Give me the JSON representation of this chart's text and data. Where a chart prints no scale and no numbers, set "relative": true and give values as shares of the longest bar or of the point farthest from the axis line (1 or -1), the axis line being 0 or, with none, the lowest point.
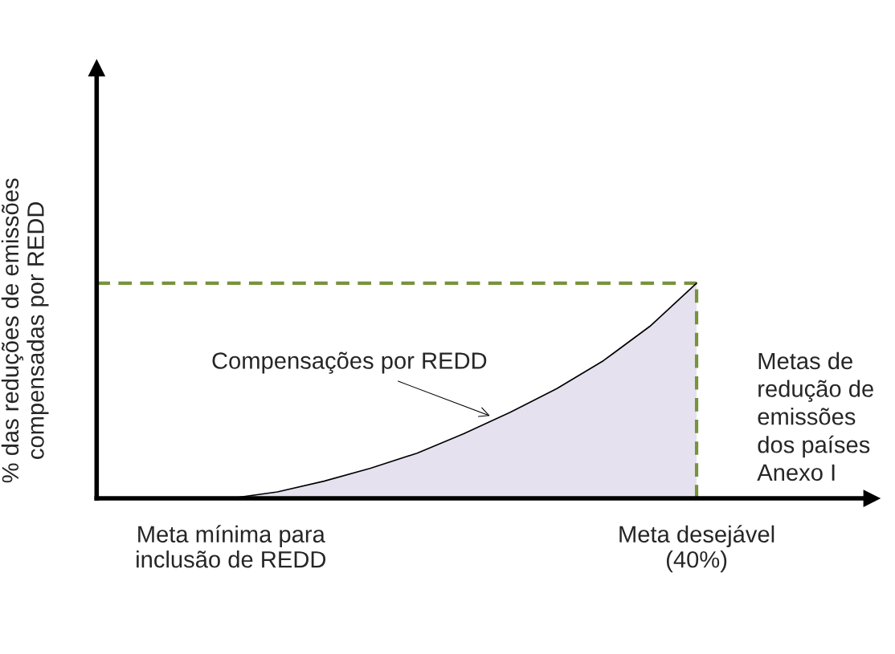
{
  "chart_data": {
    "type": "area",
    "relative": true,
    "categories": [
      "Meta mínima para\ninclusão de REDD",
      null,
      null,
      null,
      null,
      null,
      null,
      null,
      null,
      null,
      "Meta desejável\n(40%)"
    ],
    "values": [
      0,
      0.03,
      0.08,
      0.14,
      0.21,
      0.3,
      0.4,
      0.51,
      0.64,
      0.8,
      1.0
    ],
    "color": "#e6e1ee",
    "ylabel": "% das reduções de emissões\ncompensadas por REDD",
    "xlabel": "Metas de\nredução de\nemissões\ndos países\nAnexo I",
    "annotations": [
      "Compensações por REDD"
    ],
    "ref_lines": [
      {
        "axis": "y",
        "value": 1.0,
        "color": "#77933c",
        "line_style": "dashed"
      },
      {
        "axis": "x",
        "value": "Meta desejável\n(40%)",
        "color": "#77933c",
        "line_style": "dashed"
      }
    ],
    "tick_labels": "x",
    "grid": false,
    "legend": false
  }
}
